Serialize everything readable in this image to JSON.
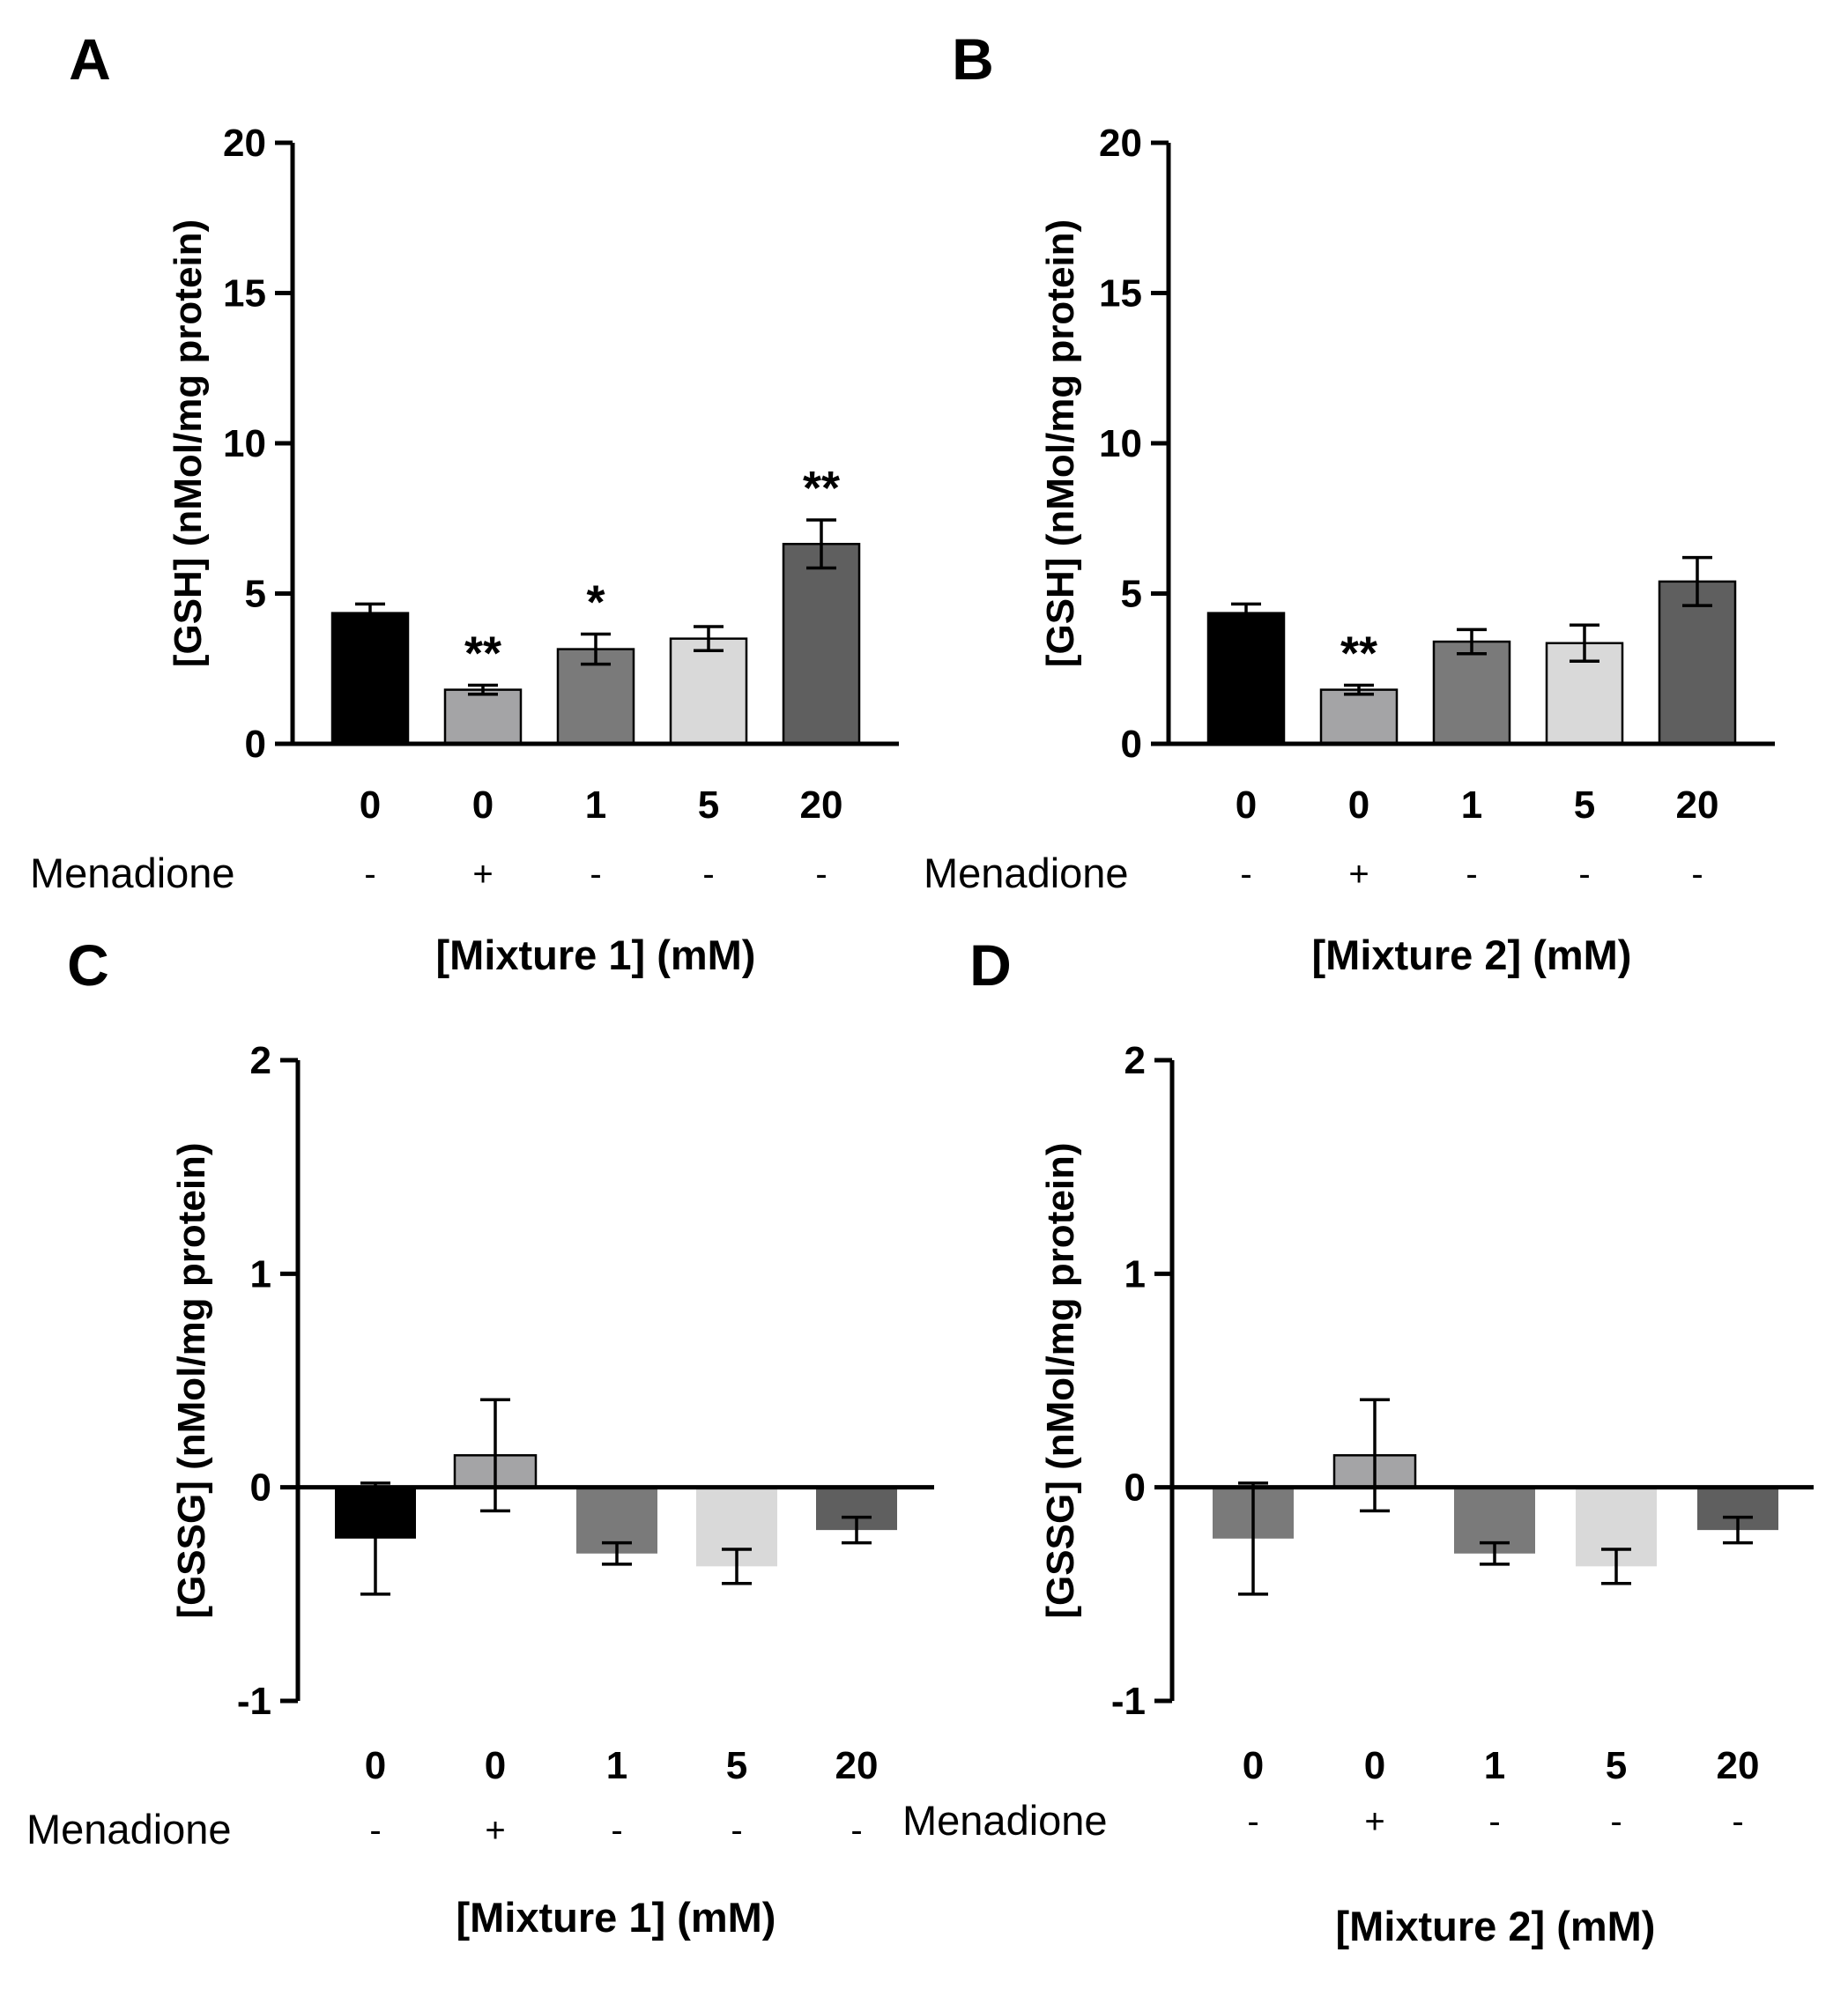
{
  "menadione_label": "Menadione",
  "chart_data": [
    {
      "panel": "A",
      "type": "bar",
      "categories": [
        "0",
        "0",
        "1",
        "5",
        "20"
      ],
      "menadione": [
        "-",
        "+",
        "-",
        "-",
        "-"
      ],
      "values": [
        4.35,
        1.8,
        3.15,
        3.5,
        6.65
      ],
      "errors": [
        0.3,
        0.15,
        0.5,
        0.4,
        0.8
      ],
      "significance": [
        "",
        "**",
        "*",
        "",
        "**"
      ],
      "colors": [
        "#000000",
        "#a4a4a6",
        "#7a7a7a",
        "#d9d9d9",
        "#5f5f5f"
      ],
      "ylabel": "[GSH] (nMol/mg protein)",
      "xlabel": "[Mixture 1] (mM)",
      "ylim": [
        0,
        20
      ],
      "yticks": [
        0,
        5,
        10,
        15,
        20
      ]
    },
    {
      "panel": "B",
      "type": "bar",
      "categories": [
        "0",
        "0",
        "1",
        "5",
        "20"
      ],
      "menadione": [
        "-",
        "+",
        "-",
        "-",
        "-"
      ],
      "values": [
        4.35,
        1.8,
        3.4,
        3.35,
        5.4
      ],
      "errors": [
        0.3,
        0.15,
        0.4,
        0.6,
        0.8
      ],
      "significance": [
        "",
        "**",
        "",
        "",
        ""
      ],
      "colors": [
        "#000000",
        "#a4a4a6",
        "#7a7a7a",
        "#d9d9d9",
        "#5f5f5f"
      ],
      "ylabel": "[GSH] (nMol/mg protein)",
      "xlabel": "[Mixture 2] (mM)",
      "ylim": [
        0,
        20
      ],
      "yticks": [
        0,
        5,
        10,
        15,
        20
      ]
    },
    {
      "panel": "C",
      "type": "bar",
      "categories": [
        "0",
        "0",
        "1",
        "5",
        "20"
      ],
      "menadione": [
        "-",
        "+",
        "-",
        "-",
        "-"
      ],
      "values": [
        -0.24,
        0.15,
        -0.31,
        -0.37,
        -0.2
      ],
      "errors": [
        0.26,
        0.26,
        0.05,
        0.08,
        0.06
      ],
      "significance": [
        "",
        "",
        "",
        "",
        ""
      ],
      "colors": [
        "#000000",
        "#a4a4a6",
        "#7a7a7a",
        "#d9d9d9",
        "#5f5f5f"
      ],
      "ylabel": "[GSSG] (nMol/mg protein)",
      "xlabel": "[Mixture 1] (mM)",
      "ylim": [
        -1,
        2
      ],
      "yticks": [
        -1,
        0,
        1,
        2
      ]
    },
    {
      "panel": "D",
      "type": "bar",
      "categories": [
        "0",
        "0",
        "1",
        "5",
        "20"
      ],
      "menadione": [
        "-",
        "+",
        "-",
        "-",
        "-"
      ],
      "values": [
        -0.24,
        0.15,
        -0.31,
        -0.37,
        -0.2
      ],
      "errors": [
        0.26,
        0.26,
        0.05,
        0.08,
        0.06
      ],
      "significance": [
        "",
        "",
        "",
        "",
        ""
      ],
      "colors": [
        "#7a7a7a",
        "#a4a4a6",
        "#7a7a7a",
        "#d9d9d9",
        "#5f5f5f"
      ],
      "ylabel": "[GSSG] (nMol/mg protein)",
      "xlabel": "[Mixture 2] (mM)",
      "ylim": [
        -1,
        2
      ],
      "yticks": [
        -1,
        0,
        1,
        2
      ]
    }
  ]
}
